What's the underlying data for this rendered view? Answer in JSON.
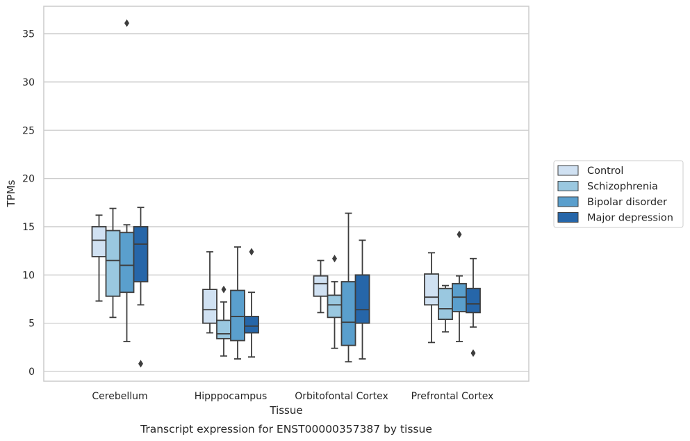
{
  "chart_data": {
    "type": "box",
    "xlabel": "Tissue",
    "ylabel": "TPMs",
    "caption": "Transcript expression for ENST00000357387 by tissue",
    "ylim": [
      -1,
      37
    ],
    "yticks": [
      0,
      5,
      10,
      15,
      20,
      25,
      30,
      35
    ],
    "grid": "horizontal",
    "legend_position": "right",
    "categories": [
      "Cerebellum",
      "Hipppocampus",
      "Orbitofontal Cortex",
      "Prefrontal Cortex"
    ],
    "series": [
      {
        "name": "Control",
        "color": "#d0e1f2",
        "boxes": [
          {
            "whisker_low": 7.3,
            "q1": 11.9,
            "median": 13.6,
            "q3": 15.0,
            "whisker_high": 16.2,
            "outliers": []
          },
          {
            "whisker_low": 4.0,
            "q1": 5.0,
            "median": 6.4,
            "q3": 8.5,
            "whisker_high": 12.4,
            "outliers": []
          },
          {
            "whisker_low": 6.1,
            "q1": 7.8,
            "median": 9.1,
            "q3": 9.9,
            "whisker_high": 11.5,
            "outliers": []
          },
          {
            "whisker_low": 3.0,
            "q1": 6.9,
            "median": 7.7,
            "q3": 10.1,
            "whisker_high": 12.3,
            "outliers": []
          }
        ]
      },
      {
        "name": "Schizophrenia",
        "color": "#9ac8e0",
        "boxes": [
          {
            "whisker_low": 5.6,
            "q1": 7.8,
            "median": 11.5,
            "q3": 14.6,
            "whisker_high": 16.9,
            "outliers": []
          },
          {
            "whisker_low": 1.6,
            "q1": 3.4,
            "median": 3.9,
            "q3": 5.3,
            "whisker_high": 7.2,
            "outliers": [
              8.5
            ]
          },
          {
            "whisker_low": 2.4,
            "q1": 5.6,
            "median": 6.9,
            "q3": 7.9,
            "whisker_high": 9.3,
            "outliers": [
              11.7
            ]
          },
          {
            "whisker_low": 4.1,
            "q1": 5.4,
            "median": 6.5,
            "q3": 8.6,
            "whisker_high": 8.9,
            "outliers": []
          }
        ]
      },
      {
        "name": "Bipolar disorder",
        "color": "#5a9fcd",
        "boxes": [
          {
            "whisker_low": 3.1,
            "q1": 8.2,
            "median": 11.0,
            "q3": 14.4,
            "whisker_high": 15.2,
            "outliers": [
              36.1
            ]
          },
          {
            "whisker_low": 1.3,
            "q1": 3.2,
            "median": 5.7,
            "q3": 8.4,
            "whisker_high": 12.9,
            "outliers": []
          },
          {
            "whisker_low": 1.0,
            "q1": 2.7,
            "median": 5.1,
            "q3": 9.3,
            "whisker_high": 16.4,
            "outliers": []
          },
          {
            "whisker_low": 3.1,
            "q1": 6.2,
            "median": 7.7,
            "q3": 9.1,
            "whisker_high": 9.9,
            "outliers": [
              14.2
            ]
          }
        ]
      },
      {
        "name": "Major depression",
        "color": "#2666a9",
        "boxes": [
          {
            "whisker_low": 6.9,
            "q1": 9.3,
            "median": 13.2,
            "q3": 15.0,
            "whisker_high": 17.0,
            "outliers": [
              0.8
            ]
          },
          {
            "whisker_low": 1.5,
            "q1": 4.0,
            "median": 4.7,
            "q3": 5.7,
            "whisker_high": 8.2,
            "outliers": [
              12.4
            ]
          },
          {
            "whisker_low": 1.3,
            "q1": 5.0,
            "median": 6.4,
            "q3": 10.0,
            "whisker_high": 13.6,
            "outliers": []
          },
          {
            "whisker_low": 4.6,
            "q1": 6.1,
            "median": 7.0,
            "q3": 8.6,
            "whisker_high": 11.7,
            "outliers": [
              1.9
            ]
          }
        ]
      }
    ]
  },
  "colors": {
    "grid": "#cccccc",
    "spine": "#cccccc",
    "box_edge": "#3d3d3d",
    "legend_border": "#cccccc"
  }
}
